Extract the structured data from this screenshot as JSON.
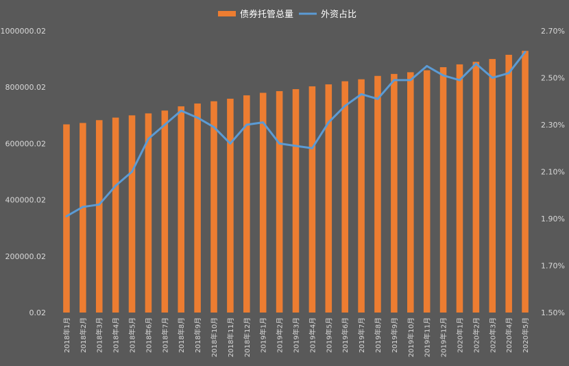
{
  "chart_data": {
    "type": "bar+line",
    "title": "",
    "categories": [
      "2018年1月",
      "2018年2月",
      "2018年3月",
      "2018年4月",
      "2018年5月",
      "2018年6月",
      "2018年7月",
      "2018年8月",
      "2018年9月",
      "2018年10月",
      "2018年11月",
      "2018年12月",
      "2019年1月",
      "2019年2月",
      "2019年3月",
      "2019年4月",
      "2019年5月",
      "2019年6月",
      "2019年7月",
      "2019年8月",
      "2019年9月",
      "2019年10月",
      "2019年11月",
      "2019年12月",
      "2020年1月",
      "2020年2月",
      "2020年3月",
      "2020年4月",
      "2020年5月"
    ],
    "series": [
      {
        "name": "债券托管总量",
        "type": "bar",
        "axis": "left",
        "color": "#ed7d31",
        "values": [
          668000,
          673000,
          683000,
          692000,
          700000,
          707000,
          717000,
          732000,
          742000,
          750000,
          759000,
          771000,
          780000,
          786000,
          793000,
          803000,
          810000,
          821000,
          828000,
          840000,
          847000,
          853000,
          860000,
          871000,
          881000,
          890000,
          900000,
          915000,
          929000
        ]
      },
      {
        "name": "外资占比",
        "type": "line",
        "axis": "right",
        "color": "#5b9bd5",
        "values": [
          1.91,
          1.95,
          1.96,
          2.04,
          2.1,
          2.24,
          2.3,
          2.36,
          2.33,
          2.29,
          2.22,
          2.3,
          2.31,
          2.22,
          2.21,
          2.2,
          2.31,
          2.38,
          2.43,
          2.41,
          2.49,
          2.49,
          2.55,
          2.51,
          2.49,
          2.56,
          2.5,
          2.52,
          2.61
        ]
      }
    ],
    "y_left": {
      "ylim": [
        0.02,
        1000000.02
      ],
      "ticks": [
        "0.02",
        "200000.02",
        "400000.02",
        "600000.02",
        "800000.02",
        "1000000.02"
      ]
    },
    "y_right": {
      "ylim": [
        1.5,
        2.7
      ],
      "ticks": [
        "1.50%",
        "1.70%",
        "1.90%",
        "2.10%",
        "2.30%",
        "2.50%",
        "2.70%"
      ]
    },
    "legend": "top-center",
    "grid": false
  }
}
